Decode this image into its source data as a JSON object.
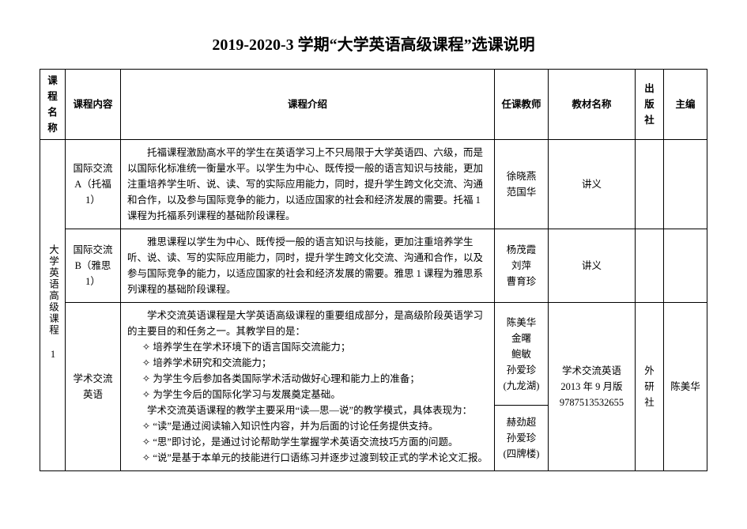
{
  "title": "2019-2020-3 学期“大学英语高级课程”选课说明",
  "headers": {
    "c1": "课程名称",
    "c2": "课程内容",
    "c3": "课程介绍",
    "c4": "任课教师",
    "c5": "教材名称",
    "c6": "出版社",
    "c7": "主编"
  },
  "category": "大学英语高级课程 1",
  "rows": {
    "r1": {
      "content": "国际交流 A（托福 1）",
      "desc": "托福课程激励高水平的学生在英语学习上不只局限于大学英语四、六级，而是以国际化标准统一衡量水平。以学生为中心、既传授一般的语言知识与技能，更加注重培养学生听、说、读、写的实际应用能力，同时，提升学生跨文化交流、沟通和合作，以及参与国际竞争的能力，以适应国家的社会和经济发展的需要。托福 1 课程为托福系列课程的基础阶段课程。",
      "teacher": "徐晓燕\n范国华",
      "book": "讲义",
      "press": "",
      "editor": ""
    },
    "r2": {
      "content": "国际交流 B（雅思 1）",
      "desc": "雅思课程以学生为中心、既传授一般的语言知识与技能，更加注重培养学生听、说、读、写的实际应用能力，同时，提升学生跨文化交流、沟通和合作，以及参与国际竞争的能力，以适应国家的社会和经济发展的需要。雅思 1 课程为雅思系列课程的基础阶段课程。",
      "teacher": "杨茂霞\n刘萍\n曹育珍",
      "book": "讲义",
      "press": "",
      "editor": ""
    },
    "r3": {
      "content": "学术交流英语",
      "desc_p1": "学术交流英语课程是大学英语高级课程的重要组成部分，是高级阶段英语学习的主要目的和任务之一。其教学目的是：",
      "desc_b1": "✧  培养学生在学术环境下的语言国际交流能力；",
      "desc_b2": "✧  培养学术研究和交流能力；",
      "desc_b3": "✧  为学生今后参加各类国际学术活动做好心理和能力上的准备；",
      "desc_b4": "✧  为学生今后的国际化学习与发展奠定基础。",
      "desc_p2": "学术交流英语课程的教学主要采用“读—思—说”的教学模式，具体表现为：",
      "desc_b5": "✧  “读”是通过阅读输入知识性内容，并为后面的讨论任务提供支持。",
      "desc_b6": "✧  “思”即讨论，是通过讨论帮助学生掌握学术英语交流技巧方面的问题。",
      "desc_b7": "✧  “说”是基于本单元的技能进行口语练习并逐步过渡到较正式的学术论文汇报。",
      "teacher1": "陈美华\n金曙\n鲍敏\n孙爱珍\n(九龙湖)",
      "teacher2": "赫劲超\n孙爱珍\n(四牌楼)",
      "book": "学术交流英语\n2013 年 9 月版\n9787513532655",
      "press": "外研社",
      "editor": "陈美华"
    }
  }
}
